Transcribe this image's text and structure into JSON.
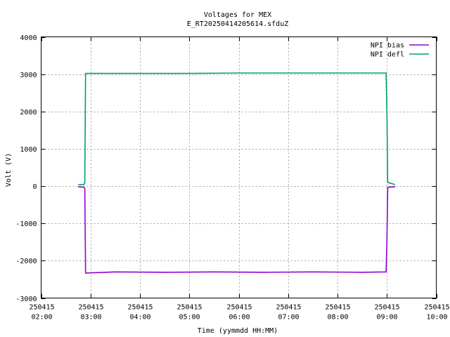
{
  "chart_data": {
    "type": "line",
    "title": "Voltages for MEX",
    "subtitle": "E_RT20250414205614.sfduZ",
    "xlabel": "Time (yymmdd HH:MM)",
    "ylabel": "Volt (V)",
    "xlim": [
      "2025-04-15 02:00",
      "2025-04-15 10:00"
    ],
    "ylim": [
      -3000,
      4000
    ],
    "grid": true,
    "legend_position": "top-right",
    "x_ticks": [
      {
        "x": "2025-04-15 02:00",
        "date": "250415",
        "time": "02:00"
      },
      {
        "x": "2025-04-15 03:00",
        "date": "250415",
        "time": "03:00"
      },
      {
        "x": "2025-04-15 04:00",
        "date": "250415",
        "time": "04:00"
      },
      {
        "x": "2025-04-15 05:00",
        "date": "250415",
        "time": "05:00"
      },
      {
        "x": "2025-04-15 06:00",
        "date": "250415",
        "time": "06:00"
      },
      {
        "x": "2025-04-15 07:00",
        "date": "250415",
        "time": "07:00"
      },
      {
        "x": "2025-04-15 08:00",
        "date": "250415",
        "time": "08:00"
      },
      {
        "x": "2025-04-15 09:00",
        "date": "250415",
        "time": "09:00"
      },
      {
        "x": "2025-04-15 10:00",
        "date": "250415",
        "time": "10:00"
      }
    ],
    "y_ticks": [
      4000,
      3000,
      2000,
      1000,
      0,
      -1000,
      -2000,
      -3000
    ],
    "series": [
      {
        "name": "NPI bias",
        "color": "#9400d3",
        "points": [
          {
            "x": "2025-04-15 02:45",
            "y": -20
          },
          {
            "x": "2025-04-15 02:52",
            "y": -30
          },
          {
            "x": "2025-04-15 02:53",
            "y": -60
          },
          {
            "x": "2025-04-15 02:54",
            "y": -2330
          },
          {
            "x": "2025-04-15 03:30",
            "y": -2300
          },
          {
            "x": "2025-04-15 04:30",
            "y": -2310
          },
          {
            "x": "2025-04-15 05:30",
            "y": -2300
          },
          {
            "x": "2025-04-15 06:30",
            "y": -2310
          },
          {
            "x": "2025-04-15 07:30",
            "y": -2300
          },
          {
            "x": "2025-04-15 08:30",
            "y": -2310
          },
          {
            "x": "2025-04-15 08:59",
            "y": -2300
          },
          {
            "x": "2025-04-15 09:00",
            "y": -1500
          },
          {
            "x": "2025-04-15 09:01",
            "y": -30
          },
          {
            "x": "2025-04-15 09:10",
            "y": -20
          }
        ]
      },
      {
        "name": "NPI defl",
        "color": "#009e73",
        "points": [
          {
            "x": "2025-04-15 02:45",
            "y": 40
          },
          {
            "x": "2025-04-15 02:52",
            "y": 40
          },
          {
            "x": "2025-04-15 02:53",
            "y": 100
          },
          {
            "x": "2025-04-15 02:54",
            "y": 3020
          },
          {
            "x": "2025-04-15 04:00",
            "y": 3020
          },
          {
            "x": "2025-04-15 05:00",
            "y": 3020
          },
          {
            "x": "2025-04-15 06:00",
            "y": 3030
          },
          {
            "x": "2025-04-15 07:00",
            "y": 3030
          },
          {
            "x": "2025-04-15 08:00",
            "y": 3030
          },
          {
            "x": "2025-04-15 08:59",
            "y": 3030
          },
          {
            "x": "2025-04-15 09:00",
            "y": 2000
          },
          {
            "x": "2025-04-15 09:01",
            "y": 100
          },
          {
            "x": "2025-04-15 09:10",
            "y": 40
          }
        ]
      }
    ]
  }
}
